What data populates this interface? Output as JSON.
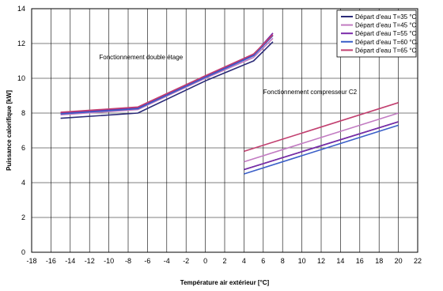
{
  "chart_data": {
    "type": "line",
    "xlabel": "Température air extérieur [°C]",
    "ylabel": "Puissance calorifique [kW]",
    "xlim": [
      -18,
      22
    ],
    "ylim": [
      0,
      14
    ],
    "x_ticks": [
      "-18",
      "-16",
      "-14",
      "-12",
      "-10",
      "-8",
      "-6",
      "-4",
      "-2",
      "0",
      "2",
      "4",
      "6",
      "8",
      "10",
      "12",
      "14",
      "16",
      "18",
      "20",
      "22"
    ],
    "y_ticks": [
      "0",
      "2",
      "4",
      "6",
      "8",
      "10",
      "12",
      "14"
    ],
    "grid": true,
    "legend_position": "top-right",
    "annotations": [
      {
        "text": "Fonctionnement double étage",
        "x": -11,
        "y": 11.1
      },
      {
        "text": "Fonctionnement compresseur C2",
        "x": 6,
        "y": 9.1
      }
    ],
    "series": [
      {
        "name": "Départ d'eau T=35 °C",
        "color": "#2b2b78",
        "double_stage": [
          [
            -15,
            7.7
          ],
          [
            -7,
            8.0
          ],
          [
            0,
            9.85
          ],
          [
            5,
            11.0
          ],
          [
            7,
            12.1
          ]
        ],
        "compressor_c2": [
          [
            4,
            4.75
          ],
          [
            20,
            7.5
          ]
        ]
      },
      {
        "name": "Départ d'eau T=45 °C",
        "color": "#c27bc2",
        "double_stage": [
          [
            -15,
            7.9
          ],
          [
            -7,
            8.2
          ],
          [
            0,
            10.0
          ],
          [
            5,
            11.2
          ],
          [
            7,
            12.3
          ]
        ],
        "compressor_c2": [
          [
            4,
            5.2
          ],
          [
            20,
            8.0
          ]
        ]
      },
      {
        "name": "Départ d'eau T=55 °C",
        "color": "#7a2aa8",
        "double_stage": [
          [
            -15,
            8.0
          ],
          [
            -7,
            8.3
          ],
          [
            0,
            10.1
          ],
          [
            5,
            11.35
          ],
          [
            7,
            12.6
          ]
        ],
        "compressor_c2": [
          [
            4,
            4.75
          ],
          [
            20,
            7.5
          ]
        ]
      },
      {
        "name": "Départ d'eau T=60 °C",
        "color": "#3a5fc8",
        "double_stage": [
          [
            -15,
            7.95
          ],
          [
            -7,
            8.25
          ],
          [
            0,
            10.05
          ],
          [
            5,
            11.3
          ],
          [
            7,
            12.45
          ]
        ],
        "compressor_c2": [
          [
            4,
            4.5
          ],
          [
            20,
            7.3
          ]
        ]
      },
      {
        "name": "Départ d'eau T=65 °C",
        "color": "#c24070",
        "double_stage": [
          [
            -15,
            8.05
          ],
          [
            -7,
            8.35
          ],
          [
            0,
            10.15
          ],
          [
            5,
            11.4
          ],
          [
            7,
            12.5
          ]
        ],
        "compressor_c2": [
          [
            4,
            5.8
          ],
          [
            20,
            8.6
          ]
        ]
      }
    ]
  }
}
